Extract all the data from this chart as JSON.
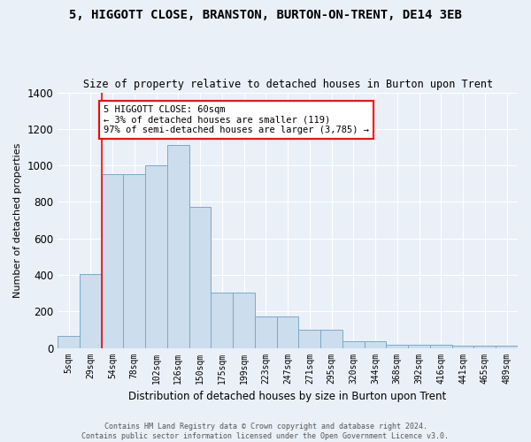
{
  "title1": "5, HIGGOTT CLOSE, BRANSTON, BURTON-ON-TRENT, DE14 3EB",
  "title2": "Size of property relative to detached houses in Burton upon Trent",
  "xlabel": "Distribution of detached houses by size in Burton upon Trent",
  "ylabel": "Number of detached properties",
  "bin_labels": [
    "5sqm",
    "29sqm",
    "54sqm",
    "78sqm",
    "102sqm",
    "126sqm",
    "150sqm",
    "175sqm",
    "199sqm",
    "223sqm",
    "247sqm",
    "271sqm",
    "295sqm",
    "320sqm",
    "344sqm",
    "368sqm",
    "392sqm",
    "416sqm",
    "441sqm",
    "465sqm",
    "489sqm"
  ],
  "bar_heights": [
    65,
    405,
    950,
    950,
    1000,
    1110,
    775,
    305,
    305,
    170,
    170,
    100,
    100,
    35,
    35,
    15,
    15,
    15,
    10,
    10,
    10
  ],
  "bar_color": "#ccdded",
  "bar_edge_color": "#7aaac8",
  "vline_x": 1.5,
  "vline_color": "red",
  "annotation_text": "5 HIGGOTT CLOSE: 60sqm\n← 3% of detached houses are smaller (119)\n97% of semi-detached houses are larger (3,785) →",
  "annotation_box_color": "white",
  "annotation_box_edge": "red",
  "ylim": [
    0,
    1400
  ],
  "yticks": [
    0,
    200,
    400,
    600,
    800,
    1000,
    1200,
    1400
  ],
  "background_color": "#eaf0f8",
  "grid_color": "white",
  "footnote": "Contains HM Land Registry data © Crown copyright and database right 2024.\nContains public sector information licensed under the Open Government Licence v3.0."
}
